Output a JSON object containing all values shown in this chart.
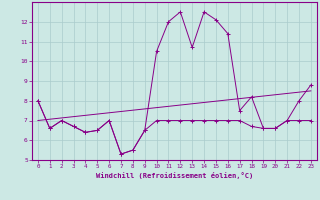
{
  "xlabel": "Windchill (Refroidissement éolien,°C)",
  "background_color": "#cce8e4",
  "grid_color": "#aacccc",
  "line_color": "#880088",
  "xlim": [
    -0.5,
    23.5
  ],
  "ylim": [
    5,
    13
  ],
  "yticks": [
    5,
    6,
    7,
    8,
    9,
    10,
    11,
    12
  ],
  "xticks": [
    0,
    1,
    2,
    3,
    4,
    5,
    6,
    7,
    8,
    9,
    10,
    11,
    12,
    13,
    14,
    15,
    16,
    17,
    18,
    19,
    20,
    21,
    22,
    23
  ],
  "series1_x": [
    0,
    1,
    2,
    3,
    4,
    5,
    6,
    7,
    8,
    9,
    10,
    11,
    12,
    13,
    14,
    15,
    16,
    17,
    18,
    19,
    20,
    21,
    22,
    23
  ],
  "series1_y": [
    8.0,
    6.6,
    7.0,
    6.7,
    6.4,
    6.5,
    7.0,
    5.3,
    5.5,
    6.5,
    7.0,
    7.0,
    7.0,
    7.0,
    7.0,
    7.0,
    7.0,
    7.0,
    6.7,
    6.6,
    6.6,
    7.0,
    7.0,
    7.0
  ],
  "series2_x": [
    0,
    1,
    2,
    3,
    4,
    5,
    6,
    7,
    8,
    9,
    10,
    11,
    12,
    13,
    14,
    15,
    16,
    17,
    18,
    19,
    20,
    21,
    22,
    23
  ],
  "series2_y": [
    8.0,
    6.6,
    7.0,
    6.7,
    6.4,
    6.5,
    7.0,
    5.3,
    5.5,
    6.5,
    10.5,
    12.0,
    12.5,
    10.7,
    12.5,
    12.1,
    11.4,
    7.5,
    8.2,
    6.6,
    6.6,
    7.0,
    8.0,
    8.8
  ],
  "series3_x": [
    0,
    23
  ],
  "series3_y": [
    7.0,
    8.5
  ]
}
